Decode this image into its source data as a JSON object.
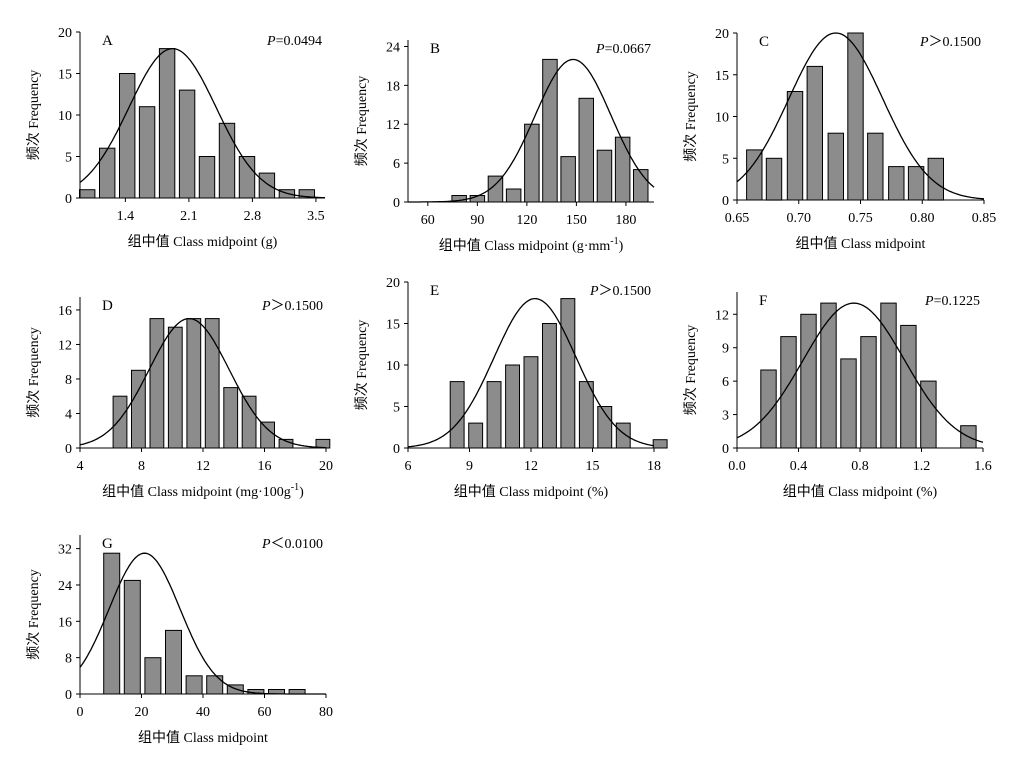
{
  "colors": {
    "bar_fill": "#8c8c8c",
    "line": "#000000",
    "background": "#ffffff"
  },
  "chart_data": [
    {
      "panel": "A",
      "type": "bar",
      "p_prefix": "P",
      "p_rest": "=0.0494",
      "xlabel": "组中值 Class midpoint (g)",
      "xlabel_sup": "",
      "xlabel_tail": "",
      "ylabel": "频次 Frequency",
      "xlim": [
        0.9,
        3.6
      ],
      "ylim": [
        0,
        20
      ],
      "xticks": [
        1.4,
        2.1,
        2.8,
        3.5
      ],
      "xtick_labels": [
        "1.4",
        "2.1",
        "2.8",
        "3.5"
      ],
      "yticks": [
        0,
        5,
        10,
        15,
        20
      ],
      "bar_width": 0.17,
      "bars": [
        [
          0.98,
          1
        ],
        [
          1.2,
          6
        ],
        [
          1.42,
          15
        ],
        [
          1.64,
          11
        ],
        [
          1.86,
          18
        ],
        [
          2.08,
          13
        ],
        [
          2.3,
          5
        ],
        [
          2.52,
          9
        ],
        [
          2.74,
          5
        ],
        [
          2.96,
          3
        ],
        [
          3.18,
          1
        ],
        [
          3.4,
          1
        ]
      ],
      "curve": {
        "peak_x": 1.92,
        "peak_y": 18,
        "sd": 0.48
      }
    },
    {
      "panel": "B",
      "type": "bar",
      "p_prefix": "P",
      "p_rest": "=0.0667",
      "xlabel": "组中值 Class midpoint (g·mm",
      "xlabel_sup": "-1",
      "xlabel_tail": ")",
      "ylabel": "频次 Frequency",
      "xlim": [
        48,
        197
      ],
      "ylim": [
        0,
        25
      ],
      "xticks": [
        60,
        90,
        120,
        150,
        180
      ],
      "xtick_labels": [
        "60",
        "90",
        "120",
        "150",
        "180"
      ],
      "yticks": [
        0,
        6,
        12,
        18,
        24
      ],
      "bar_width": 8.8,
      "bars": [
        [
          79,
          1
        ],
        [
          90,
          1
        ],
        [
          101,
          4
        ],
        [
          112,
          2
        ],
        [
          123,
          12
        ],
        [
          134,
          22
        ],
        [
          145,
          7
        ],
        [
          156,
          16
        ],
        [
          167,
          8
        ],
        [
          178,
          10
        ],
        [
          189,
          5
        ]
      ],
      "curve": {
        "peak_x": 148,
        "peak_y": 22,
        "sd": 23
      }
    },
    {
      "panel": "C",
      "type": "bar",
      "p_prefix": "P",
      "p_rest": "＞0.1500",
      "xlabel": "组中值 Class midpoint",
      "xlabel_sup": "",
      "xlabel_tail": "",
      "ylabel": "频次 Frequency",
      "xlim": [
        0.65,
        0.85
      ],
      "ylim": [
        0,
        20
      ],
      "xticks": [
        0.65,
        0.7,
        0.75,
        0.8,
        0.85
      ],
      "xtick_labels": [
        "0.65",
        "0.70",
        "0.75",
        "0.80",
        "0.85"
      ],
      "yticks": [
        0,
        5,
        10,
        15,
        20
      ],
      "bar_width": 0.0125,
      "bars": [
        [
          0.664,
          6
        ],
        [
          0.68,
          5
        ],
        [
          0.697,
          13
        ],
        [
          0.713,
          16
        ],
        [
          0.73,
          8
        ],
        [
          0.746,
          20
        ],
        [
          0.762,
          8
        ],
        [
          0.779,
          4
        ],
        [
          0.795,
          4
        ],
        [
          0.811,
          5
        ]
      ],
      "curve": {
        "peak_x": 0.73,
        "peak_y": 20,
        "sd": 0.038
      }
    },
    {
      "panel": "D",
      "type": "bar",
      "p_prefix": "P",
      "p_rest": "＞0.1500",
      "xlabel": "组中值 Class midpoint (mg·100g",
      "xlabel_sup": "-1",
      "xlabel_tail": ")",
      "ylabel": "频次 Frequency",
      "xlim": [
        4,
        20
      ],
      "ylim": [
        0,
        17.5
      ],
      "xticks": [
        4,
        8,
        12,
        16,
        20
      ],
      "xtick_labels": [
        "4",
        "8",
        "12",
        "16",
        "20"
      ],
      "yticks": [
        0,
        4,
        8,
        12,
        16
      ],
      "bar_width": 0.9,
      "bars": [
        [
          6.6,
          6
        ],
        [
          7.8,
          9
        ],
        [
          9.0,
          15
        ],
        [
          10.2,
          14
        ],
        [
          11.4,
          15
        ],
        [
          12.6,
          15
        ],
        [
          13.8,
          7
        ],
        [
          15.0,
          6
        ],
        [
          16.2,
          3
        ],
        [
          17.4,
          1
        ],
        [
          18.6,
          0
        ],
        [
          19.8,
          1
        ]
      ],
      "curve": {
        "peak_x": 11.1,
        "peak_y": 15,
        "sd": 2.6
      }
    },
    {
      "panel": "E",
      "type": "bar",
      "p_prefix": "P",
      "p_rest": "＞0.1500",
      "xlabel": "组中值 Class midpoint (%)",
      "xlabel_sup": "",
      "xlabel_tail": "",
      "ylabel": "频次 Frequency",
      "xlim": [
        6,
        18
      ],
      "ylim": [
        0,
        20
      ],
      "xticks": [
        6,
        9,
        12,
        15,
        18
      ],
      "xtick_labels": [
        "6",
        "9",
        "12",
        "15",
        "18"
      ],
      "yticks": [
        0,
        5,
        10,
        15,
        20
      ],
      "bar_width": 0.68,
      "bars": [
        [
          8.4,
          8
        ],
        [
          9.3,
          3
        ],
        [
          10.2,
          8
        ],
        [
          11.1,
          10
        ],
        [
          12.0,
          11
        ],
        [
          12.9,
          15
        ],
        [
          13.8,
          18
        ],
        [
          14.7,
          8
        ],
        [
          15.6,
          5
        ],
        [
          16.5,
          3
        ],
        [
          17.4,
          0
        ],
        [
          18.3,
          1
        ]
      ],
      "curve": {
        "peak_x": 12.2,
        "peak_y": 18,
        "sd": 2.0
      }
    },
    {
      "panel": "F",
      "type": "bar",
      "p_prefix": "P",
      "p_rest": "=0.1225",
      "xlabel": "组中值 Class midpoint (%)",
      "xlabel_sup": "",
      "xlabel_tail": "",
      "ylabel": "频次 Frequency",
      "xlim": [
        0,
        1.6
      ],
      "ylim": [
        0,
        14
      ],
      "xticks": [
        0,
        0.4,
        0.8,
        1.2,
        1.6
      ],
      "xtick_labels": [
        "0.0",
        "0.4",
        "0.8",
        "1.2",
        "1.6"
      ],
      "yticks": [
        0,
        3,
        6,
        9,
        12
      ],
      "bar_width": 0.1,
      "bars": [
        [
          0.205,
          7
        ],
        [
          0.335,
          10
        ],
        [
          0.465,
          12
        ],
        [
          0.595,
          13
        ],
        [
          0.725,
          8
        ],
        [
          0.855,
          10
        ],
        [
          0.985,
          13
        ],
        [
          1.115,
          11
        ],
        [
          1.245,
          6
        ],
        [
          1.375,
          0
        ],
        [
          1.505,
          2
        ]
      ],
      "curve": {
        "peak_x": 0.76,
        "peak_y": 13,
        "sd": 0.33
      }
    },
    {
      "panel": "G",
      "type": "bar",
      "p_prefix": "P",
      "p_rest": "＜0.0100",
      "xlabel": "组中值 Class midpoint",
      "xlabel_sup": "",
      "xlabel_tail": "",
      "ylabel": "频次 Frequency",
      "xlim": [
        0,
        80
      ],
      "ylim": [
        0,
        35
      ],
      "xticks": [
        0,
        20,
        40,
        60,
        80
      ],
      "xtick_labels": [
        "0",
        "20",
        "40",
        "60",
        "80"
      ],
      "yticks": [
        0,
        8,
        16,
        24,
        32
      ],
      "bar_width": 5.2,
      "bars": [
        [
          10.3,
          31
        ],
        [
          17,
          25
        ],
        [
          23.7,
          8
        ],
        [
          30.4,
          14
        ],
        [
          37.1,
          4
        ],
        [
          43.8,
          4
        ],
        [
          50.5,
          2
        ],
        [
          57.2,
          1
        ],
        [
          63.9,
          1
        ],
        [
          70.6,
          1
        ]
      ],
      "curve": {
        "peak_x": 21,
        "peak_y": 31,
        "sd": 11.5
      }
    }
  ]
}
